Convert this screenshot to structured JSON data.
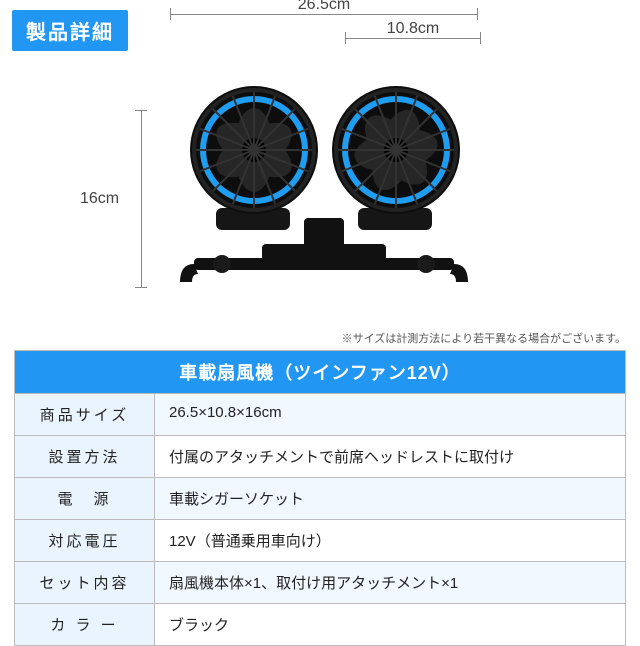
{
  "header": {
    "badge": "製品詳細"
  },
  "dimensions": {
    "width_label": "26.5cm",
    "fan_width_label": "10.8cm",
    "height_label": "16cm"
  },
  "colors": {
    "accent": "#2196f3",
    "fan_ring": "#1f9df0",
    "body": "#111111",
    "blade": "#222222",
    "grill": "#2a2a2a",
    "dim_line": "#888888",
    "table_border": "#bcbcbc",
    "table_key_bg": "#eaf4ff",
    "table_alt_bg": "#f1f8ff",
    "text": "#222222"
  },
  "note": "※サイズは計測方法により若干異なる場合がございます。",
  "spec": {
    "title": "車載扇風機（ツインファン12V）",
    "rows": [
      {
        "k": "商品サイズ",
        "v": "26.5×10.8×16cm"
      },
      {
        "k": "設置方法",
        "v": "付属のアタッチメントで前席ヘッドレストに取付け"
      },
      {
        "k": "電　源",
        "v": "車載シガーソケット"
      },
      {
        "k": "対応電圧",
        "v": "12V（普通乗用車向け）"
      },
      {
        "k": "セット内容",
        "v": "扇風機本体×1、取付け用アタッチメント×1"
      },
      {
        "k": "カ ラ ー",
        "v": "ブラック"
      }
    ]
  }
}
